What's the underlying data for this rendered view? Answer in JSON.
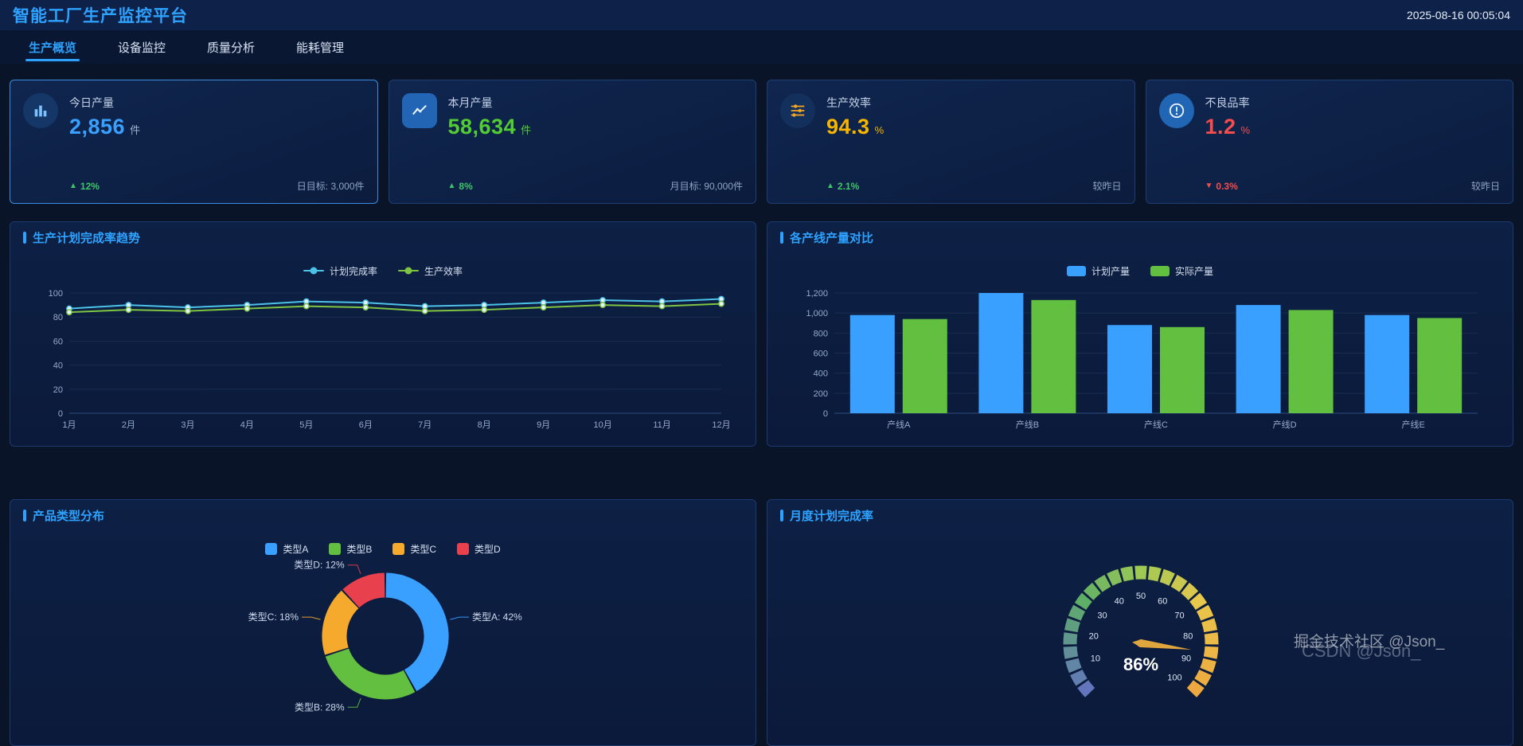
{
  "header": {
    "title": "智能工厂生产监控平台",
    "timestamp": "2025-08-16 00:05:04"
  },
  "tabs": [
    {
      "label": "生产概览",
      "active": true
    },
    {
      "label": "设备监控",
      "active": false
    },
    {
      "label": "质量分析",
      "active": false
    },
    {
      "label": "能耗管理",
      "active": false
    }
  ],
  "kpis": [
    {
      "icon": "bar-chart-icon",
      "label": "今日产量",
      "value": "2,856",
      "unit": "件",
      "value_color": "#3aa0ff",
      "unit_color": "#9fb3d1",
      "trend_icon": "▲",
      "trend": "12%",
      "trend_color": "#3fc46a",
      "note": "日目标: 3,000件"
    },
    {
      "icon": "line-chart-icon",
      "label": "本月产量",
      "value": "58,634",
      "unit": "件",
      "value_color": "#52cc33",
      "unit_color": "#52cc33",
      "trend_icon": "▲",
      "trend": "8%",
      "trend_color": "#3fc46a",
      "note": "月目标: 90,000件"
    },
    {
      "icon": "sliders-icon",
      "label": "生产效率",
      "value": "94.3",
      "unit": "%",
      "value_color": "#f7b500",
      "unit_color": "#f7b500",
      "trend_icon": "▲",
      "trend": "2.1%",
      "trend_color": "#3fc46a",
      "note": "较昨日"
    },
    {
      "icon": "alert-icon",
      "label": "不良品率",
      "value": "1.2",
      "unit": "%",
      "value_color": "#f54d4d",
      "unit_color": "#f54d4d",
      "trend_icon": "▼",
      "trend": "0.3%",
      "trend_color": "#f54d4d",
      "note": "较昨日"
    }
  ],
  "chart_data": [
    {
      "id": "trend",
      "type": "line",
      "title": "生产计划完成率趋势",
      "categories": [
        "1月",
        "2月",
        "3月",
        "4月",
        "5月",
        "6月",
        "7月",
        "8月",
        "9月",
        "10月",
        "11月",
        "12月"
      ],
      "ylim": [
        0,
        100
      ],
      "yticks": [
        0,
        20,
        40,
        60,
        80,
        100
      ],
      "grid": true,
      "legend_position": "top",
      "series": [
        {
          "name": "计划完成率",
          "color": "#4cc2e8",
          "values": [
            87,
            90,
            88,
            90,
            93,
            92,
            89,
            90,
            92,
            94,
            93,
            95
          ]
        },
        {
          "name": "生产效率",
          "color": "#7ec342",
          "values": [
            84,
            86,
            85,
            87,
            89,
            88,
            85,
            86,
            88,
            90,
            89,
            91
          ]
        }
      ]
    },
    {
      "id": "bars",
      "type": "bar",
      "title": "各产线产量对比",
      "categories": [
        "产线A",
        "产线B",
        "产线C",
        "产线D",
        "产线E"
      ],
      "ylim": [
        0,
        1200
      ],
      "yticks": [
        0,
        200,
        400,
        600,
        800,
        1000,
        1200
      ],
      "ytick_labels": [
        "0",
        "200",
        "400",
        "600",
        "800",
        "1,000",
        "1,200"
      ],
      "grid": true,
      "legend_position": "top",
      "series": [
        {
          "name": "计划产量",
          "color": "#3aa0ff",
          "values": [
            980,
            1200,
            880,
            1080,
            980
          ]
        },
        {
          "name": "实际产量",
          "color": "#63bf3f",
          "values": [
            940,
            1130,
            860,
            1030,
            950
          ]
        }
      ]
    },
    {
      "id": "pie",
      "type": "pie",
      "title": "产品类型分布",
      "legend_position": "top",
      "slices": [
        {
          "name": "类型A",
          "value": 42,
          "color": "#3aa0ff",
          "label": "类型A: 42%"
        },
        {
          "name": "类型B",
          "value": 28,
          "color": "#63bf3f",
          "label": "类型B: 28%"
        },
        {
          "name": "类型C",
          "value": 18,
          "color": "#f5a92d",
          "label": "类型C: 18%"
        },
        {
          "name": "类型D",
          "value": 12,
          "color": "#e8414d",
          "label": "类型D: 12%"
        }
      ]
    },
    {
      "id": "gauge",
      "type": "gauge",
      "title": "月度计划完成率",
      "value": 86,
      "value_label": "86%",
      "min": 0,
      "max": 100,
      "tick_labels": [
        10,
        20,
        30,
        40,
        50,
        60,
        70,
        80,
        90,
        100
      ],
      "needle_color": "#e0a63e",
      "color_stops": [
        [
          0,
          "#6372c3"
        ],
        [
          0.3,
          "#5fae68"
        ],
        [
          0.5,
          "#9ec954"
        ],
        [
          0.7,
          "#e8c84b"
        ],
        [
          1,
          "#eda73f"
        ]
      ]
    }
  ],
  "watermark": {
    "line1": "掘金技术社区 @Json_",
    "line2": "CSDN @Json_"
  }
}
